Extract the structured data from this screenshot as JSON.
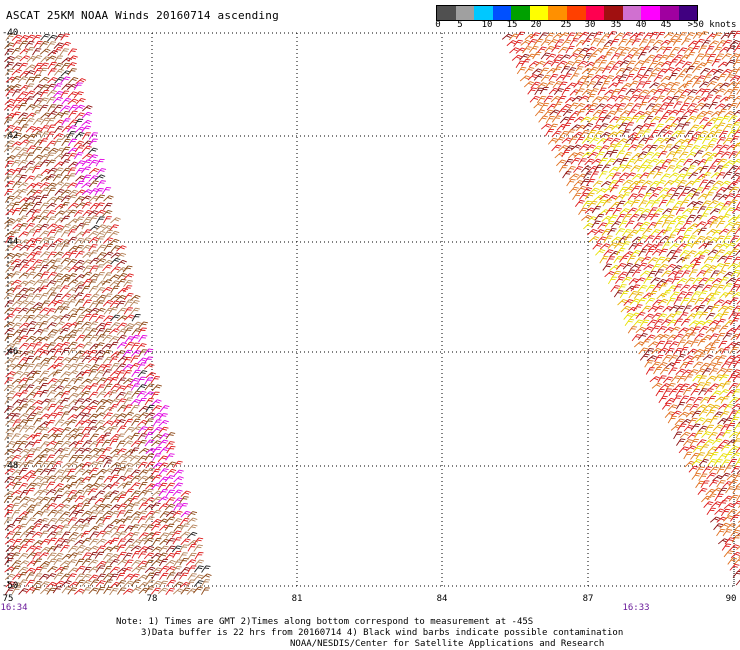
{
  "title": "ASCAT 25KM NOAA Winds 20160714 ascending",
  "colorbar": {
    "colors": [
      "#505050",
      "#a0a0a0",
      "#00c8ff",
      "#0050ff",
      "#00a000",
      "#ffff00",
      "#ff9000",
      "#ff4000",
      "#ff0050",
      "#a01010",
      "#d070d0",
      "#ff00ff",
      "#a000a0",
      "#400080"
    ],
    "labels": [
      "0",
      "5",
      "10",
      "15",
      "20",
      "25",
      "30",
      "35",
      "40",
      "45",
      ">50 knots"
    ]
  },
  "lat_labels": [
    "-40",
    "-42",
    "-44",
    "-46",
    "-48",
    "-50"
  ],
  "lon_labels": [
    "75",
    "78",
    "81",
    "84",
    "87",
    "90"
  ],
  "time_labels": [
    "16:34",
    "16:33"
  ],
  "notes": {
    "line1": "Note: 1) Times are GMT 2)Times along bottom correspond to measurement at -45S",
    "line2": "3)Data buffer is 22 hrs from 20160714 4) Black wind barbs indicate possible contamination",
    "line3": "NOAA/NESDIS/Center for Satellite Applications and Research"
  },
  "barb_colors": {
    "brown": "#8b4513",
    "tan": "#b5835a",
    "red": "#dd1a1a",
    "darkred": "#8b1010",
    "magenta": "#e000e0",
    "black": "#222222",
    "orange": "#e07020",
    "yellow": "#e8e000",
    "gold": "#e8b000"
  }
}
